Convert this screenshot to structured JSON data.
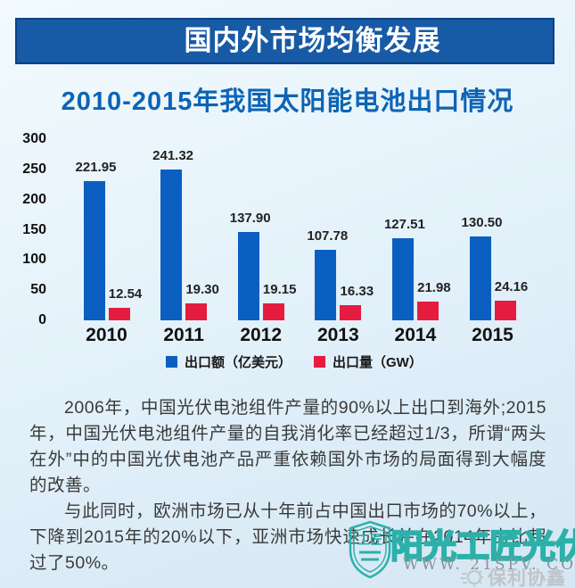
{
  "header": {
    "banner_title": "国内外市场均衡发展"
  },
  "colors": {
    "banner_bg": "#175aa6",
    "banner_border": "#0c4184",
    "title_blue": "#0d64b5",
    "export_value_blue": "#0b5fc0",
    "export_volume_red": "#e51c40",
    "watermark_teal": "#2cb0aa"
  },
  "chart_data": {
    "type": "bar",
    "title": "2010-2015年我国太阳能电池出口情况",
    "categories": [
      "2010",
      "2011",
      "2012",
      "2013",
      "2014",
      "2015"
    ],
    "series": [
      {
        "name": "出口额（亿美元）",
        "color": "#0b5fc0",
        "values": [
          221.95,
          241.32,
          137.9,
          107.78,
          127.51,
          130.5
        ],
        "labels": [
          "221.95",
          "241.32",
          "137.90",
          "107.78",
          "127.51",
          "130.50"
        ]
      },
      {
        "name": "出口量（GW）",
        "color": "#e51c40",
        "values": [
          12.54,
          19.3,
          19.15,
          16.33,
          21.98,
          24.16
        ],
        "labels": [
          "12.54",
          "19.30",
          "19.15",
          "16.33",
          "21.98",
          "24.16"
        ]
      }
    ],
    "xlabel": "",
    "ylabel": "",
    "ylim": [
      0,
      300
    ],
    "yticks": [
      0,
      50,
      100,
      150,
      200,
      250,
      300
    ],
    "grid": false,
    "legend_position": "bottom",
    "value_labels": true
  },
  "paragraphs": [
    "2006年，中国光伏电池组件产量的90%以上出口到海外;2015年，中国光伏电池组件产量的自我消化率已经超过1/3，所谓“两头在外”中的中国光伏电池产品严重依赖国外市场的局面得到大幅度的改善。",
    "与此同时，欧洲市场已从十年前占中国出口市场的70%以上，下降到2015年的20%以下，亚洲市场快速成长并在2014年占比超过了50%。"
  ],
  "watermark": {
    "site_name": "阳光工匠光伏网",
    "site_url": "WWW. 21SPV. COM",
    "brand": "保利协鑫",
    "shield_text": "工匠"
  }
}
